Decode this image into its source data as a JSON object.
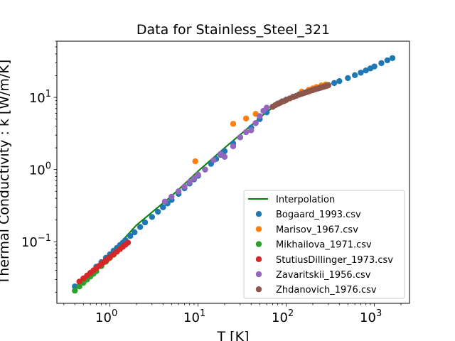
{
  "chart_data": {
    "type": "scatter",
    "title": "Data for Stainless_Steel_321",
    "xlabel": "T [K]",
    "ylabel": "Thermal Conductivity : k [W/m/K]",
    "xscale": "log",
    "yscale": "log",
    "xlim": [
      0.25,
      2500
    ],
    "ylim": [
      0.014,
      60
    ],
    "x_ticks": [
      {
        "base": "10",
        "exp": "0",
        "value": 1
      },
      {
        "base": "10",
        "exp": "1",
        "value": 10
      },
      {
        "base": "10",
        "exp": "2",
        "value": 100
      },
      {
        "base": "10",
        "exp": "3",
        "value": 1000
      }
    ],
    "y_ticks": [
      {
        "base": "10",
        "exp": "−1",
        "value": 0.1
      },
      {
        "base": "10",
        "exp": "0",
        "value": 1
      },
      {
        "base": "10",
        "exp": "1",
        "value": 10
      }
    ],
    "grid": false,
    "legend_position": "lower right",
    "line": {
      "name": "Interpolation",
      "color": "#008000",
      "x": [
        0.4,
        1,
        2,
        5,
        10,
        20,
        40,
        60,
        80,
        100,
        150,
        200,
        300
      ],
      "y": [
        0.023,
        0.067,
        0.17,
        0.43,
        0.95,
        2.0,
        4.1,
        6.3,
        8.0,
        9.3,
        11.2,
        12.6,
        14.7
      ]
    },
    "series": [
      {
        "name": "Bogaard_1993.csv",
        "color": "#1f77b4",
        "x": [
          0.4,
          0.5,
          0.6,
          0.7,
          0.8,
          0.9,
          1.0,
          1.1,
          1.2,
          1.3,
          1.4,
          1.5,
          1.7,
          1.9,
          2.2,
          2.5,
          3.0,
          3.5,
          4.0,
          4.5,
          5.0,
          6.0,
          7.0,
          8.0,
          9.0,
          10,
          12,
          14,
          16,
          18,
          20,
          25,
          30,
          35,
          40,
          45,
          50,
          60,
          70,
          80,
          90,
          100,
          120,
          140,
          160,
          180,
          200,
          250,
          300,
          350,
          400,
          500,
          600,
          700,
          800,
          900,
          1000,
          1200,
          1400,
          1600
        ],
        "y": [
          0.024,
          0.03,
          0.037,
          0.045,
          0.052,
          0.06,
          0.067,
          0.075,
          0.082,
          0.09,
          0.097,
          0.105,
          0.12,
          0.135,
          0.16,
          0.185,
          0.22,
          0.26,
          0.3,
          0.34,
          0.38,
          0.46,
          0.55,
          0.64,
          0.73,
          0.82,
          1.0,
          1.2,
          1.4,
          1.6,
          1.8,
          2.3,
          2.8,
          3.3,
          3.8,
          4.4,
          5.0,
          6.2,
          7.4,
          8.2,
          8.8,
          9.3,
          10.2,
          11.0,
          11.6,
          12.2,
          12.7,
          13.8,
          14.8,
          15.8,
          16.8,
          18.5,
          20.3,
          22.0,
          23.6,
          25.2,
          26.8,
          29.8,
          32.6,
          35.0
        ]
      },
      {
        "name": "Marisov_1967.csv",
        "color": "#ff7f0e",
        "x": [
          9.3,
          25,
          35,
          45,
          150,
          180,
          200,
          220,
          250,
          280
        ],
        "y": [
          1.3,
          4.3,
          5.1,
          5.9,
          12.0,
          12.7,
          13.3,
          13.9,
          14.6,
          15.1
        ]
      },
      {
        "name": "Mikhailova_1971.csv",
        "color": "#2ca02c",
        "x": [
          0.4,
          0.45,
          0.5,
          0.55,
          0.6,
          0.65,
          0.7,
          0.8,
          0.9,
          1.0,
          1.1,
          1.2,
          1.3
        ],
        "y": [
          0.021,
          0.024,
          0.027,
          0.03,
          0.033,
          0.036,
          0.039,
          0.046,
          0.053,
          0.06,
          0.066,
          0.073,
          0.08
        ]
      },
      {
        "name": "StutiusDillinger_1973.csv",
        "color": "#d62728",
        "x": [
          0.45,
          0.5,
          0.55,
          0.6,
          0.65,
          0.7,
          0.75,
          0.8,
          0.85,
          0.9,
          0.95,
          1.0,
          1.1,
          1.2,
          1.3,
          1.4,
          1.5,
          1.6
        ],
        "y": [
          0.028,
          0.031,
          0.034,
          0.037,
          0.04,
          0.043,
          0.046,
          0.049,
          0.052,
          0.055,
          0.058,
          0.061,
          0.067,
          0.073,
          0.079,
          0.085,
          0.091,
          0.097
        ]
      },
      {
        "name": "Zavaritskii_1956.csv",
        "color": "#9467bd",
        "x": [
          4.2,
          5,
          6,
          7,
          8,
          9,
          10,
          12,
          15,
          18,
          20,
          25,
          30,
          35,
          40,
          45,
          50,
          55,
          60
        ],
        "y": [
          0.36,
          0.42,
          0.5,
          0.58,
          0.67,
          0.75,
          0.85,
          1.0,
          1.35,
          1.65,
          1.5,
          2.1,
          2.8,
          3.3,
          3.5,
          4.4,
          5.5,
          6.5,
          7.2
        ]
      },
      {
        "name": "Zhdanovich_1976.csv",
        "color": "#8c564b",
        "x": [
          70,
          75,
          80,
          85,
          90,
          95,
          100,
          110,
          120,
          130,
          140,
          150,
          160,
          170,
          180,
          190,
          200,
          210,
          220,
          230,
          240,
          250,
          260,
          270,
          280,
          290,
          300
        ],
        "y": [
          7.4,
          7.8,
          8.1,
          8.4,
          8.7,
          8.9,
          9.2,
          9.7,
          10.1,
          10.5,
          10.9,
          11.2,
          11.5,
          11.8,
          12.1,
          12.4,
          12.6,
          12.9,
          13.1,
          13.3,
          13.5,
          13.7,
          13.9,
          14.1,
          14.3,
          14.5,
          14.7
        ]
      }
    ]
  }
}
